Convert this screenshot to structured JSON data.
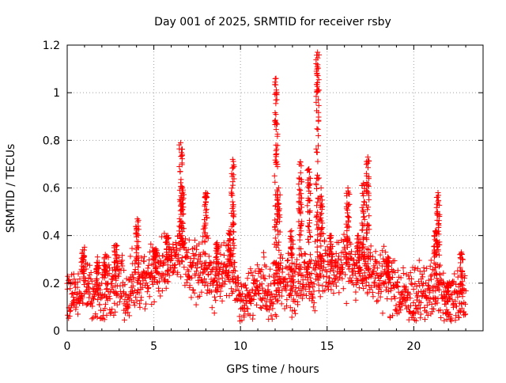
{
  "chart_data": {
    "type": "scatter",
    "title": "Day 001 of 2025, SRMTID for receiver rsby",
    "xlabel": "GPS time / hours",
    "ylabel": "SRMTID / TECUs",
    "xlim": [
      0,
      24
    ],
    "ylim": [
      0,
      1.2
    ],
    "xticks": [
      0,
      5,
      10,
      15,
      20
    ],
    "yticks": [
      0,
      0.2,
      0.4,
      0.6,
      0.8,
      1,
      1.2
    ],
    "xtick_labels": [
      "0",
      "5",
      "10",
      "15",
      "20"
    ],
    "ytick_labels": [
      "0",
      "0.2",
      "0.4",
      "0.6",
      "0.8",
      "1",
      "1.2"
    ],
    "grid": true,
    "marker": "+",
    "color": "#ff0000",
    "x_extent_hours": [
      0,
      23
    ],
    "baseline_trend": [
      [
        0,
        0.16
      ],
      [
        0.5,
        0.14
      ],
      [
        1,
        0.22
      ],
      [
        1.5,
        0.13
      ],
      [
        2,
        0.17
      ],
      [
        2.5,
        0.2
      ],
      [
        3,
        0.2
      ],
      [
        3.5,
        0.16
      ],
      [
        4,
        0.23
      ],
      [
        4.5,
        0.2
      ],
      [
        5,
        0.24
      ],
      [
        5.5,
        0.27
      ],
      [
        6,
        0.3
      ],
      [
        6.5,
        0.35
      ],
      [
        7,
        0.27
      ],
      [
        7.5,
        0.26
      ],
      [
        8,
        0.27
      ],
      [
        8.5,
        0.22
      ],
      [
        9,
        0.24
      ],
      [
        9.5,
        0.28
      ],
      [
        10,
        0.12
      ],
      [
        10.5,
        0.15
      ],
      [
        11,
        0.2
      ],
      [
        11.5,
        0.15
      ],
      [
        12,
        0.18
      ],
      [
        12.5,
        0.2
      ],
      [
        13,
        0.17
      ],
      [
        13.5,
        0.22
      ],
      [
        14,
        0.22
      ],
      [
        14.5,
        0.25
      ],
      [
        15,
        0.28
      ],
      [
        15.5,
        0.25
      ],
      [
        16,
        0.3
      ],
      [
        16.5,
        0.26
      ],
      [
        17,
        0.25
      ],
      [
        17.5,
        0.24
      ],
      [
        18,
        0.24
      ],
      [
        18.5,
        0.21
      ],
      [
        19,
        0.18
      ],
      [
        19.5,
        0.14
      ],
      [
        20,
        0.14
      ],
      [
        20.5,
        0.16
      ],
      [
        21,
        0.16
      ],
      [
        21.5,
        0.18
      ],
      [
        22,
        0.11
      ],
      [
        22.5,
        0.14
      ],
      [
        23,
        0.14
      ]
    ],
    "peaks": [
      {
        "x": 0.9,
        "y": 0.34
      },
      {
        "x": 1.75,
        "y": 0.31
      },
      {
        "x": 2.2,
        "y": 0.32
      },
      {
        "x": 2.8,
        "y": 0.36
      },
      {
        "x": 4.05,
        "y": 0.47
      },
      {
        "x": 5.05,
        "y": 0.34
      },
      {
        "x": 5.8,
        "y": 0.4
      },
      {
        "x": 6.55,
        "y": 0.79
      },
      {
        "x": 6.65,
        "y": 0.6
      },
      {
        "x": 8.0,
        "y": 0.58
      },
      {
        "x": 8.65,
        "y": 0.37
      },
      {
        "x": 9.55,
        "y": 0.72
      },
      {
        "x": 9.35,
        "y": 0.42
      },
      {
        "x": 12.05,
        "y": 1.06
      },
      {
        "x": 12.2,
        "y": 0.6
      },
      {
        "x": 12.95,
        "y": 0.42
      },
      {
        "x": 13.45,
        "y": 0.71
      },
      {
        "x": 13.95,
        "y": 0.68
      },
      {
        "x": 14.45,
        "y": 1.17
      },
      {
        "x": 14.65,
        "y": 0.6
      },
      {
        "x": 15.2,
        "y": 0.4
      },
      {
        "x": 16.2,
        "y": 0.6
      },
      {
        "x": 16.8,
        "y": 0.4
      },
      {
        "x": 17.1,
        "y": 0.62
      },
      {
        "x": 17.35,
        "y": 0.73
      },
      {
        "x": 18.5,
        "y": 0.31
      },
      {
        "x": 21.4,
        "y": 0.58
      },
      {
        "x": 21.25,
        "y": 0.42
      },
      {
        "x": 22.75,
        "y": 0.33
      },
      {
        "x": 21.95,
        "y": 0.2
      }
    ]
  }
}
